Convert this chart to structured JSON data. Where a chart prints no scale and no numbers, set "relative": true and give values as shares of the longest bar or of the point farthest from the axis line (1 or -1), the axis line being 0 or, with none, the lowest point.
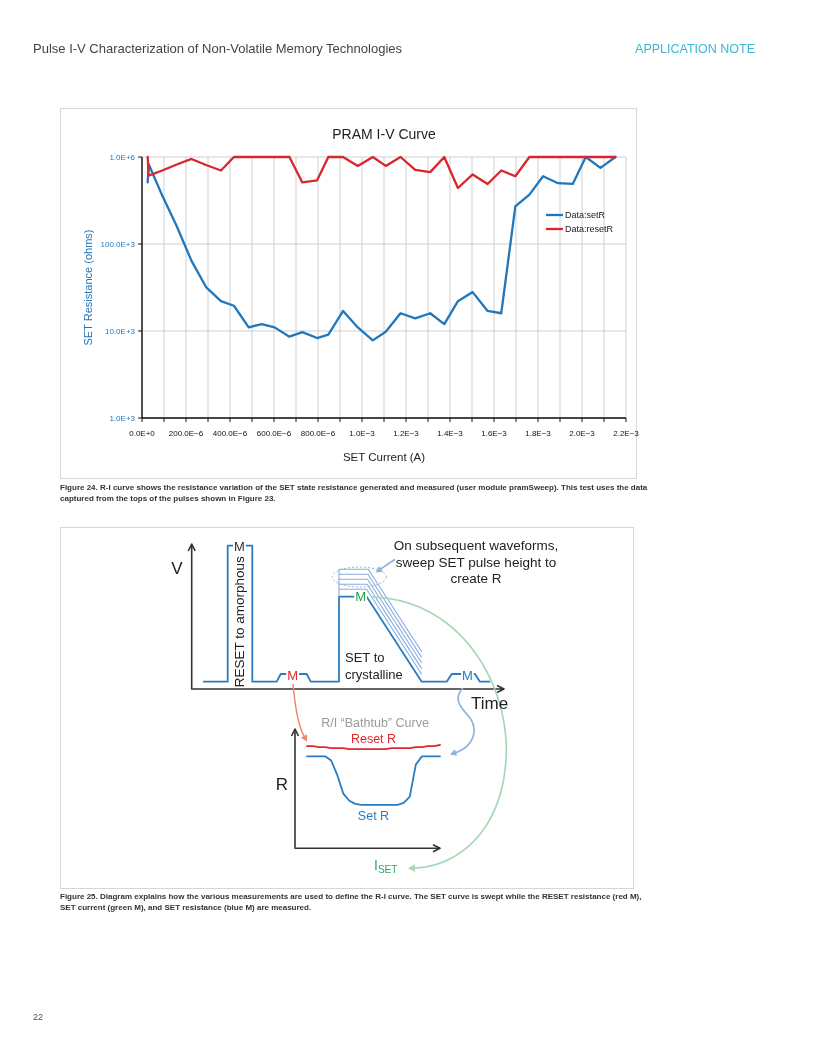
{
  "chart_data": [
    {
      "type": "line",
      "title": "PRAM I-V Curve",
      "xlabel": "SET Current (A)",
      "ylabel": "SET Resistance (ohms)",
      "x": [
        2.6e-05,
        3e-05,
        9.2e-05,
        0.000158,
        0.000225,
        0.000291,
        0.000359,
        0.000418,
        0.000485,
        0.000544,
        0.000603,
        0.00067,
        0.000729,
        0.000796,
        0.000847,
        0.000914,
        0.000981,
        0.001049,
        0.001108,
        0.001175,
        0.001242,
        0.00131,
        0.001374,
        0.001436,
        0.001503,
        0.001571,
        0.001633,
        0.001697,
        0.001761,
        0.001823,
        0.001891,
        0.001958,
        0.002017,
        0.002084,
        0.002152
      ],
      "series": [
        {
          "name": "Data:setR",
          "color": "#2277bb",
          "values": [
            510000,
            830000,
            360000,
            160000,
            64000,
            32000,
            22000,
            19500,
            11000,
            12000,
            11000,
            8600,
            9700,
            8300,
            9100,
            17000,
            11000,
            7800,
            9800,
            16000,
            14000,
            16000,
            12000,
            22000,
            28000,
            17000,
            16000,
            270000,
            370000,
            600000,
            500000,
            490000,
            1000000,
            750000,
            1000000
          ]
        },
        {
          "name": "Data:resetR",
          "color": "#d9252e",
          "values": [
            1000000,
            610000,
            700000,
            820000,
            950000,
            810000,
            700000,
            1000000,
            1000000,
            1000000,
            1000000,
            1000000,
            510000,
            540000,
            1000000,
            1000000,
            790000,
            1000000,
            790000,
            1000000,
            710000,
            670000,
            1000000,
            440000,
            630000,
            490000,
            700000,
            600000,
            1000000,
            1000000,
            1000000,
            1000000,
            1000000,
            1000000,
            1000000
          ]
        }
      ],
      "xlim": [
        0,
        0.0022
      ],
      "xticks": [
        {
          "value": 0,
          "label": "0.0E+0"
        },
        {
          "value": 0.0001,
          "label": null
        },
        {
          "value": 0.0002,
          "label": "200.0E−6"
        },
        {
          "value": 0.0003,
          "label": null
        },
        {
          "value": 0.0004,
          "label": "400.0E−6"
        },
        {
          "value": 0.0005,
          "label": null
        },
        {
          "value": 0.0006,
          "label": "600.0E−6"
        },
        {
          "value": 0.0007,
          "label": null
        },
        {
          "value": 0.0008,
          "label": "800.0E−6"
        },
        {
          "value": 0.0009,
          "label": null
        },
        {
          "value": 0.001,
          "label": "1.0E−3"
        },
        {
          "value": 0.0011,
          "label": null
        },
        {
          "value": 0.0012,
          "label": "1.2E−3"
        },
        {
          "value": 0.0013,
          "label": null
        },
        {
          "value": 0.0014,
          "label": "1.4E−3"
        },
        {
          "value": 0.0015,
          "label": null
        },
        {
          "value": 0.0016,
          "label": "1.6E−3"
        },
        {
          "value": 0.0017,
          "label": null
        },
        {
          "value": 0.0018,
          "label": "1.8E−3"
        },
        {
          "value": 0.0019,
          "label": null
        },
        {
          "value": 0.002,
          "label": "2.0E−3"
        },
        {
          "value": 0.0021,
          "label": null
        },
        {
          "value": 0.0022,
          "label": "2.2E−3"
        }
      ],
      "ylim": [
        1000,
        1000000
      ],
      "yticks": [
        {
          "value": 1000,
          "label": "1.0E+3"
        },
        {
          "value": 10000,
          "label": "10.0E+3"
        },
        {
          "value": 100000,
          "label": "100.0E+3"
        },
        {
          "value": 1000000,
          "label": "1.0E+6"
        }
      ],
      "log": "y",
      "grid": true,
      "legend": "right",
      "annotations": [
        "Pulse I-V Characterization of Non-Volatile Memory Technologies",
        "APPLICATION NOTE",
        "Figure 24. R-I curve shows the resistance variation of the SET state resistance generated and measured (user module pramSweep). This test uses the data captured from the tops of the pulses shown in Figure 23."
      ]
    },
    {
      "type": "other",
      "annotations": [
        "V",
        "M",
        "RESET to amorphous",
        "M",
        "On subsequent waveforms, sweep SET pulse height to create R",
        "M",
        "SET to crystalline",
        "M",
        "Time",
        "Figure 25. Diagram explains how the various measurements are used to define the R-I curve. The SET curve is swept while the RESET resistance (red M), SET current (green M), and SET resistance (blue M) are measured.",
        "22"
      ]
    },
    {
      "type": "line",
      "relative": true,
      "title": "R/I “Bathtub” Curve",
      "xlabel": "I$_{SET}$",
      "ylabel": "R",
      "categories": [
        null,
        null,
        null,
        null,
        null,
        null,
        null,
        null,
        null,
        null,
        null,
        null,
        null,
        null,
        null,
        null,
        null,
        null,
        null,
        null,
        null,
        null,
        null
      ],
      "series": [
        {
          "name": "Reset R",
          "color": "#e0262f",
          "values": [
            0.99,
            0.99,
            0.98,
            0.98,
            0.97,
            0.97,
            0.97,
            0.96,
            0.96,
            0.96,
            0.96,
            0.96,
            0.96,
            0.96,
            0.97,
            0.97,
            0.97,
            0.97,
            0.98,
            0.98,
            0.99,
            0.99,
            1.0
          ]
        },
        {
          "name": "Set R",
          "color": "#2a7cc0",
          "values": [
            0.89,
            0.89,
            0.89,
            0.89,
            0.85,
            0.71,
            0.53,
            0.46,
            0.43,
            0.42,
            0.42,
            0.42,
            0.42,
            0.42,
            0.42,
            0.42,
            0.44,
            0.5,
            0.81,
            0.89,
            0.89,
            0.89,
            0.89
          ]
        }
      ]
    }
  ]
}
